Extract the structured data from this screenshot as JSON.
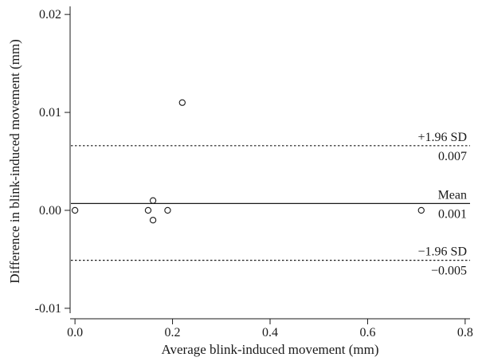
{
  "chart_data": {
    "type": "scatter",
    "title": "",
    "xlabel": "Average blink-induced movement (mm)",
    "ylabel": "Difference in blink-induced movement (mm)",
    "xlim": [
      -0.01,
      0.81
    ],
    "ylim": [
      -0.0105,
      0.0205
    ],
    "x_ticks": [
      0.0,
      0.2,
      0.4,
      0.6,
      0.8
    ],
    "x_tick_labels": [
      "0.0",
      "0.2",
      "0.4",
      "0.6",
      "0.8"
    ],
    "y_ticks": [
      -0.01,
      0.0,
      0.01,
      0.02
    ],
    "y_tick_labels": [
      "-0.01",
      "0.00",
      "0.01",
      "0.02"
    ],
    "grid": false,
    "points": [
      {
        "x": 0.0,
        "y": 0.0
      },
      {
        "x": 0.15,
        "y": 0.0
      },
      {
        "x": 0.16,
        "y": 0.001
      },
      {
        "x": 0.16,
        "y": -0.001
      },
      {
        "x": 0.19,
        "y": 0.0
      },
      {
        "x": 0.22,
        "y": 0.011
      },
      {
        "x": 0.71,
        "y": 0.0
      }
    ],
    "reference_lines": [
      {
        "id": "upper",
        "y": 0.0066,
        "style": "dotted",
        "label_top": "+1.96 SD",
        "label_bottom": "0.007"
      },
      {
        "id": "mean",
        "y": 0.0007,
        "style": "solid",
        "label_top": "Mean",
        "label_bottom": "0.001"
      },
      {
        "id": "lower",
        "y": -0.0051,
        "style": "dotted",
        "label_top": "−1.96 SD",
        "label_bottom": "−0.005"
      }
    ],
    "colors": {
      "ink": "#1a1a1a",
      "background": "#ffffff"
    }
  }
}
